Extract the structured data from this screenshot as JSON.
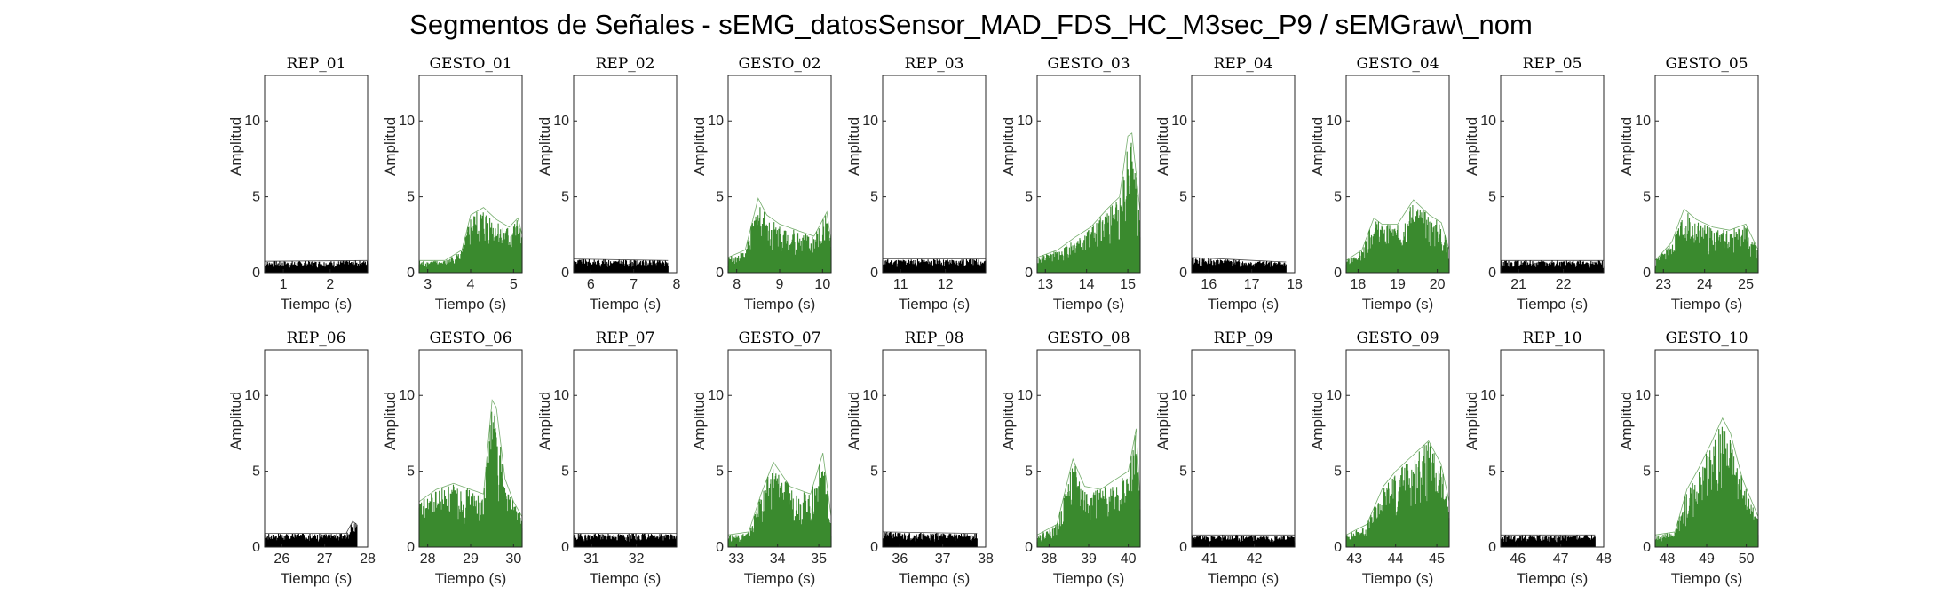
{
  "title": "Segmentos de Señales - sEMG_datosSensor_MAD_FDS_HC_M3sec_P9 / sEMGraw\\_nom",
  "colors": {
    "rep": "#000000",
    "gesture": "#3a8a2e",
    "axis": "#262626"
  },
  "chart_data": [
    {
      "type": "area",
      "title": "REP_01",
      "xlabel": "Tiempo (s)",
      "ylabel": "Amplitud",
      "xlim": [
        0.6,
        2.8
      ],
      "ylim": [
        0,
        13
      ],
      "xticks": [
        1,
        2
      ],
      "yticks": [
        0,
        5,
        10
      ],
      "x": [
        0.6,
        2.8
      ],
      "envelope_y": [
        0.75,
        0.8
      ],
      "kind": "rep"
    },
    {
      "type": "area",
      "title": "GESTO_01",
      "xlabel": "Tiempo (s)",
      "ylabel": "Amplitud",
      "xlim": [
        2.8,
        5.2
      ],
      "ylim": [
        0,
        13
      ],
      "xticks": [
        3,
        4,
        5
      ],
      "yticks": [
        0,
        5,
        10
      ],
      "x": [
        2.8,
        3.4,
        3.8,
        4.0,
        4.3,
        4.6,
        4.9,
        5.1,
        5.2
      ],
      "envelope_y": [
        0.8,
        0.8,
        1.5,
        3.8,
        4.3,
        3.5,
        3.0,
        3.6,
        2.5
      ],
      "kind": "gesture"
    },
    {
      "type": "area",
      "title": "REP_02",
      "xlabel": "Tiempo (s)",
      "ylabel": "Amplitud",
      "xlim": [
        5.6,
        8.0
      ],
      "ylim": [
        0,
        13
      ],
      "xticks": [
        6,
        7,
        8
      ],
      "yticks": [
        0,
        5,
        10
      ],
      "x": [
        5.6,
        7.8
      ],
      "envelope_y": [
        0.9,
        0.8
      ],
      "kind": "rep"
    },
    {
      "type": "area",
      "title": "GESTO_02",
      "xlabel": "Tiempo (s)",
      "ylabel": "Amplitud",
      "xlim": [
        7.8,
        10.2
      ],
      "ylim": [
        0,
        13
      ],
      "xticks": [
        8,
        9,
        10
      ],
      "yticks": [
        0,
        5,
        10
      ],
      "x": [
        7.8,
        8.2,
        8.5,
        8.7,
        9.0,
        9.4,
        9.8,
        10.1,
        10.2
      ],
      "envelope_y": [
        1.0,
        1.5,
        4.9,
        3.8,
        3.2,
        2.8,
        2.4,
        4.0,
        2.0
      ],
      "kind": "gesture"
    },
    {
      "type": "area",
      "title": "REP_03",
      "xlabel": "Tiempo (s)",
      "ylabel": "Amplitud",
      "xlim": [
        10.6,
        12.9
      ],
      "ylim": [
        0,
        13
      ],
      "xticks": [
        11,
        12
      ],
      "yticks": [
        0,
        5,
        10
      ],
      "x": [
        10.6,
        12.9
      ],
      "envelope_y": [
        0.9,
        0.9
      ],
      "kind": "rep"
    },
    {
      "type": "area",
      "title": "GESTO_03",
      "xlabel": "Tiempo (s)",
      "ylabel": "Amplitud",
      "xlim": [
        12.8,
        15.3
      ],
      "ylim": [
        0,
        13
      ],
      "xticks": [
        13,
        14,
        15
      ],
      "yticks": [
        0,
        5,
        10
      ],
      "x": [
        12.8,
        13.3,
        13.7,
        14.1,
        14.5,
        14.8,
        15.0,
        15.1,
        15.3
      ],
      "envelope_y": [
        1.0,
        1.5,
        2.3,
        3.0,
        4.2,
        5.0,
        9.0,
        9.2,
        4.0
      ],
      "kind": "gesture"
    },
    {
      "type": "area",
      "title": "REP_04",
      "xlabel": "Tiempo (s)",
      "ylabel": "Amplitud",
      "xlim": [
        15.6,
        18.0
      ],
      "ylim": [
        0,
        13
      ],
      "xticks": [
        16,
        17,
        18
      ],
      "yticks": [
        0,
        5,
        10
      ],
      "x": [
        15.6,
        17.8
      ],
      "envelope_y": [
        1.0,
        0.7
      ],
      "kind": "rep"
    },
    {
      "type": "area",
      "title": "GESTO_04",
      "xlabel": "Tiempo (s)",
      "ylabel": "Amplitud",
      "xlim": [
        17.7,
        20.3
      ],
      "ylim": [
        0,
        13
      ],
      "xticks": [
        18,
        19,
        20
      ],
      "yticks": [
        0,
        5,
        10
      ],
      "x": [
        17.7,
        18.1,
        18.4,
        18.6,
        19.0,
        19.4,
        19.8,
        20.1,
        20.3
      ],
      "envelope_y": [
        0.8,
        1.5,
        3.6,
        3.2,
        3.2,
        4.8,
        3.8,
        3.3,
        1.5
      ],
      "kind": "gesture"
    },
    {
      "type": "area",
      "title": "REP_05",
      "xlabel": "Tiempo (s)",
      "ylabel": "Amplitud",
      "xlim": [
        20.6,
        22.9
      ],
      "ylim": [
        0,
        13
      ],
      "xticks": [
        21,
        22
      ],
      "yticks": [
        0,
        5,
        10
      ],
      "x": [
        20.6,
        22.9
      ],
      "envelope_y": [
        0.8,
        0.8
      ],
      "kind": "rep"
    },
    {
      "type": "area",
      "title": "GESTO_05",
      "xlabel": "Tiempo (s)",
      "ylabel": "Amplitud",
      "xlim": [
        22.8,
        25.3
      ],
      "ylim": [
        0,
        13
      ],
      "xticks": [
        23,
        24,
        25
      ],
      "yticks": [
        0,
        5,
        10
      ],
      "x": [
        22.8,
        23.2,
        23.5,
        23.8,
        24.2,
        24.6,
        25.0,
        25.3
      ],
      "envelope_y": [
        0.8,
        2.0,
        4.2,
        3.5,
        3.0,
        2.8,
        3.2,
        1.5
      ],
      "kind": "gesture"
    },
    {
      "type": "area",
      "title": "REP_06",
      "xlabel": "Tiempo (s)",
      "ylabel": "Amplitud",
      "xlim": [
        25.6,
        28.0
      ],
      "ylim": [
        0,
        13
      ],
      "xticks": [
        26,
        27,
        28
      ],
      "yticks": [
        0,
        5,
        10
      ],
      "x": [
        25.6,
        27.5,
        27.65,
        27.75
      ],
      "envelope_y": [
        0.9,
        0.9,
        1.7,
        1.5
      ],
      "kind": "rep"
    },
    {
      "type": "area",
      "title": "GESTO_06",
      "xlabel": "Tiempo (s)",
      "ylabel": "Amplitud",
      "xlim": [
        27.8,
        30.2
      ],
      "ylim": [
        0,
        13
      ],
      "xticks": [
        28,
        29,
        30
      ],
      "yticks": [
        0,
        5,
        10
      ],
      "x": [
        27.8,
        28.2,
        28.6,
        29.0,
        29.3,
        29.5,
        29.6,
        29.8,
        30.0,
        30.2
      ],
      "envelope_y": [
        3.0,
        3.8,
        4.2,
        3.8,
        3.5,
        9.7,
        9.2,
        4.5,
        3.0,
        2.0
      ],
      "kind": "gesture"
    },
    {
      "type": "area",
      "title": "REP_07",
      "xlabel": "Tiempo (s)",
      "ylabel": "Amplitud",
      "xlim": [
        30.6,
        32.9
      ],
      "ylim": [
        0,
        13
      ],
      "xticks": [
        31,
        32
      ],
      "yticks": [
        0,
        5,
        10
      ],
      "x": [
        30.6,
        32.9
      ],
      "envelope_y": [
        0.9,
        0.9
      ],
      "kind": "rep"
    },
    {
      "type": "area",
      "title": "GESTO_07",
      "xlabel": "Tiempo (s)",
      "ylabel": "Amplitud",
      "xlim": [
        32.8,
        35.3
      ],
      "ylim": [
        0,
        13
      ],
      "xticks": [
        33,
        34,
        35
      ],
      "yticks": [
        0,
        5,
        10
      ],
      "x": [
        32.8,
        33.3,
        33.6,
        33.9,
        34.3,
        34.8,
        35.1,
        35.3
      ],
      "envelope_y": [
        0.8,
        1.0,
        3.5,
        5.6,
        4.0,
        3.5,
        6.2,
        2.0
      ],
      "kind": "gesture"
    },
    {
      "type": "area",
      "title": "REP_08",
      "xlabel": "Tiempo (s)",
      "ylabel": "Amplitud",
      "xlim": [
        35.6,
        38.0
      ],
      "ylim": [
        0,
        13
      ],
      "xticks": [
        36,
        37,
        38
      ],
      "yticks": [
        0,
        5,
        10
      ],
      "x": [
        35.6,
        37.8
      ],
      "envelope_y": [
        1.0,
        0.9
      ],
      "kind": "rep"
    },
    {
      "type": "area",
      "title": "GESTO_08",
      "xlabel": "Tiempo (s)",
      "ylabel": "Amplitud",
      "xlim": [
        37.7,
        40.3
      ],
      "ylim": [
        0,
        13
      ],
      "xticks": [
        38,
        39,
        40
      ],
      "yticks": [
        0,
        5,
        10
      ],
      "x": [
        37.7,
        38.2,
        38.6,
        38.9,
        39.3,
        39.7,
        40.0,
        40.2,
        40.3
      ],
      "envelope_y": [
        0.8,
        1.5,
        5.8,
        4.0,
        3.8,
        4.5,
        5.0,
        7.8,
        3.0
      ],
      "kind": "gesture"
    },
    {
      "type": "area",
      "title": "REP_09",
      "xlabel": "Tiempo (s)",
      "ylabel": "Amplitud",
      "xlim": [
        40.6,
        42.9
      ],
      "ylim": [
        0,
        13
      ],
      "xticks": [
        41,
        42
      ],
      "yticks": [
        0,
        5,
        10
      ],
      "x": [
        40.6,
        42.9
      ],
      "envelope_y": [
        0.8,
        0.8
      ],
      "kind": "rep"
    },
    {
      "type": "area",
      "title": "GESTO_09",
      "xlabel": "Tiempo (s)",
      "ylabel": "Amplitud",
      "xlim": [
        42.8,
        45.3
      ],
      "ylim": [
        0,
        13
      ],
      "xticks": [
        43,
        44,
        45
      ],
      "yticks": [
        0,
        5,
        10
      ],
      "x": [
        42.8,
        43.3,
        43.7,
        44.0,
        44.4,
        44.8,
        45.1,
        45.3
      ],
      "envelope_y": [
        0.8,
        1.5,
        4.0,
        5.0,
        6.0,
        7.0,
        5.5,
        3.0
      ],
      "kind": "gesture"
    },
    {
      "type": "area",
      "title": "REP_10",
      "xlabel": "Tiempo (s)",
      "ylabel": "Amplitud",
      "xlim": [
        45.6,
        48.0
      ],
      "ylim": [
        0,
        13
      ],
      "xticks": [
        46,
        47,
        48
      ],
      "yticks": [
        0,
        5,
        10
      ],
      "x": [
        45.6,
        47.8
      ],
      "envelope_y": [
        0.8,
        0.8
      ],
      "kind": "rep"
    },
    {
      "type": "area",
      "title": "GESTO_10",
      "xlabel": "Tiempo (s)",
      "ylabel": "Amplitud",
      "xlim": [
        47.7,
        50.3
      ],
      "ylim": [
        0,
        13
      ],
      "xticks": [
        48,
        49,
        50
      ],
      "yticks": [
        0,
        5,
        10
      ],
      "x": [
        47.7,
        48.2,
        48.5,
        48.8,
        49.1,
        49.4,
        49.6,
        49.9,
        50.3
      ],
      "envelope_y": [
        0.8,
        1.0,
        3.8,
        5.2,
        6.8,
        8.5,
        7.5,
        4.5,
        2.0
      ],
      "kind": "gesture"
    }
  ]
}
